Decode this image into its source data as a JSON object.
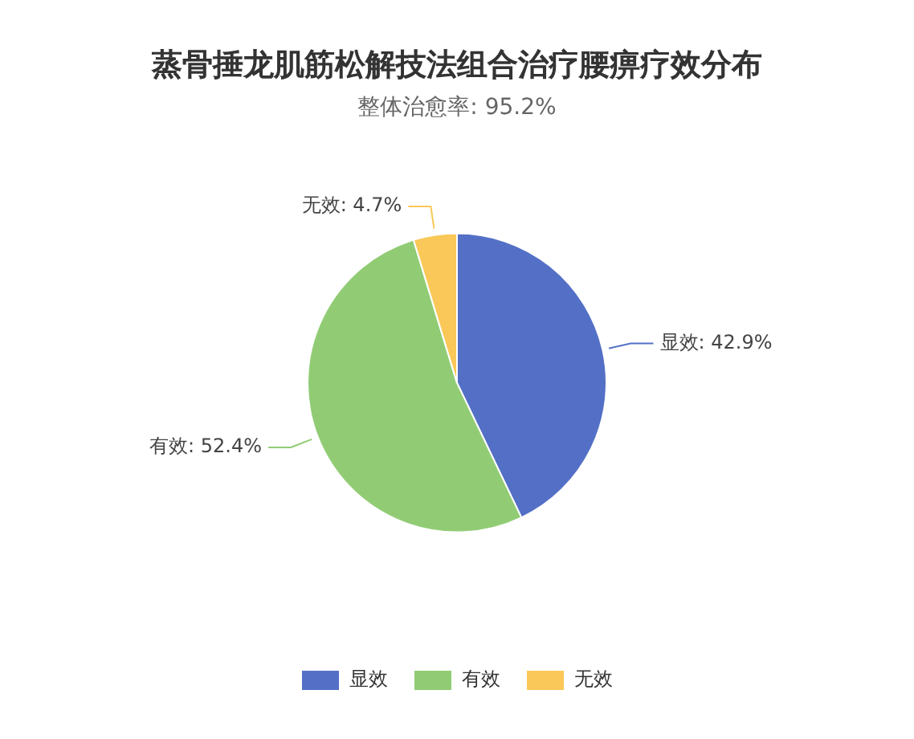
{
  "chart_data": {
    "type": "pie",
    "title": "蒸骨捶龙肌筋松解技法组合治疗腰痹疗效分布",
    "subtitle": "整体治愈率: 95.2%",
    "categories": [
      "显效",
      "有效",
      "无效"
    ],
    "values": [
      42.9,
      52.4,
      4.7
    ],
    "value_labels": [
      "显效: 42.9%",
      "有效: 52.4%",
      "无效: 4.7%"
    ],
    "colors": [
      "#5470c6",
      "#91cc75",
      "#fac858"
    ],
    "legend": "bottom"
  }
}
